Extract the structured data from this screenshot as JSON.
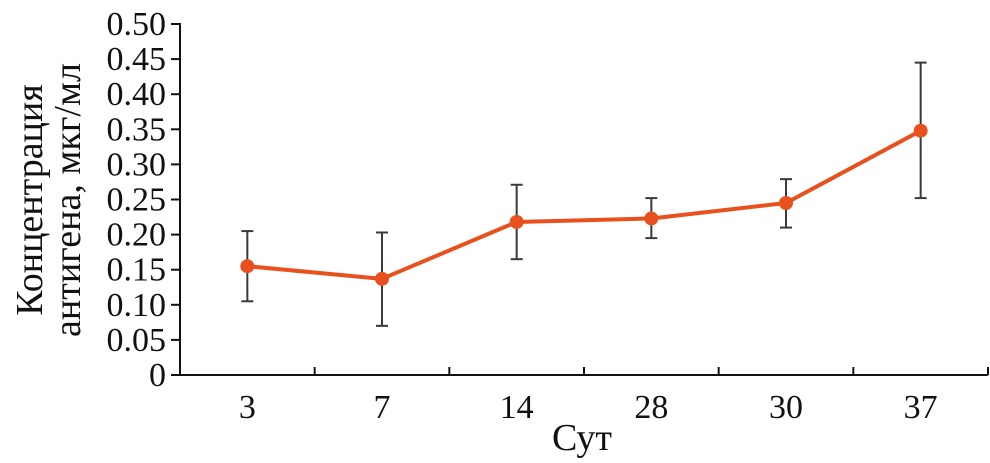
{
  "chart_data": {
    "type": "line",
    "categories": [
      "3",
      "7",
      "14",
      "28",
      "30",
      "37"
    ],
    "values": [
      0.155,
      0.137,
      0.218,
      0.223,
      0.245,
      0.348
    ],
    "error_low": [
      0.105,
      0.07,
      0.165,
      0.195,
      0.21,
      0.252
    ],
    "error_high": [
      0.205,
      0.203,
      0.271,
      0.252,
      0.279,
      0.445
    ],
    "xlabel": "Сут",
    "ylabel_line1": "Концентрация",
    "ylabel_line2": "антигена, мкг/мл",
    "ylim": [
      0,
      0.5
    ],
    "yticks": [
      "0",
      "0.05",
      "0.10",
      "0.15",
      "0.20",
      "0.25",
      "0.30",
      "0.35",
      "0.40",
      "0.45",
      "0.50"
    ],
    "grid": false,
    "line_color": "#e8501e",
    "marker_color": "#e8501e",
    "errorbar_color": "#3a3a3a",
    "axis_color": "#111111"
  }
}
